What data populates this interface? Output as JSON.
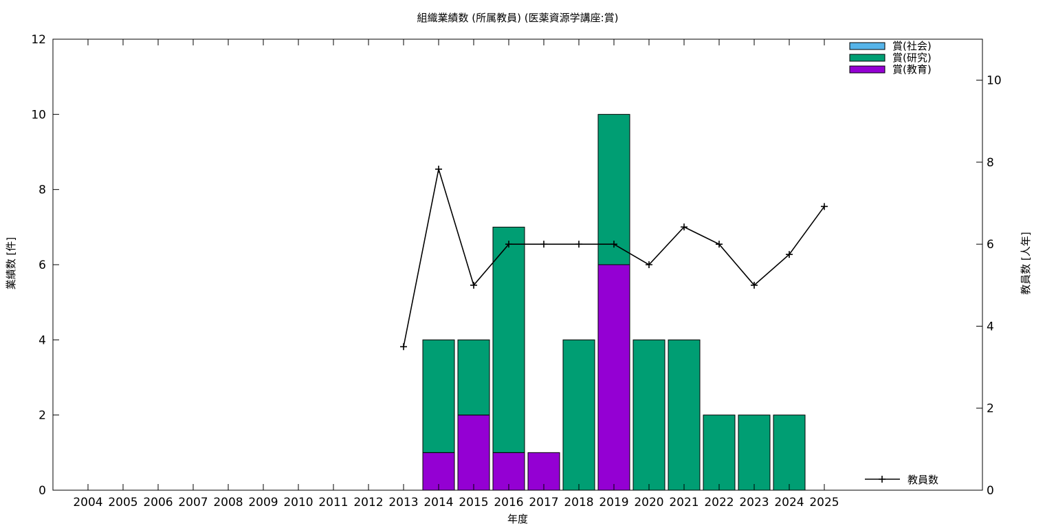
{
  "chart_data": {
    "type": "bar",
    "title": "組織業績数 (所属教員) (医薬資源学講座:賞)",
    "xlabel": "年度",
    "ylabel": "業績数 [件]",
    "y2label": "教員数 [人年]",
    "ylim": [
      0,
      12
    ],
    "y2lim": [
      0,
      11
    ],
    "yticks": [
      0,
      2,
      4,
      6,
      8,
      10,
      12
    ],
    "y2ticks": [
      0,
      2,
      4,
      6,
      8,
      10
    ],
    "stacked": true,
    "grid": false,
    "legend_position": "top-right",
    "categories": [
      "2004",
      "2005",
      "2006",
      "2007",
      "2008",
      "2009",
      "2010",
      "2011",
      "2012",
      "2013",
      "2014",
      "2015",
      "2016",
      "2017",
      "2018",
      "2019",
      "2020",
      "2021",
      "2022",
      "2023",
      "2024",
      "2025"
    ],
    "series": [
      {
        "name": "賞(社会)",
        "color": "#56b4e9",
        "values": [
          0,
          0,
          0,
          0,
          0,
          0,
          0,
          0,
          0,
          0,
          0,
          0,
          0,
          0,
          0,
          0,
          0,
          0,
          0,
          0,
          0,
          0
        ]
      },
      {
        "name": "賞(研究)",
        "color": "#009e73",
        "values": [
          0,
          0,
          0,
          0,
          0,
          0,
          0,
          0,
          0,
          0,
          3,
          2,
          6,
          0,
          4,
          4,
          4,
          4,
          2,
          2,
          2,
          0
        ]
      },
      {
        "name": "賞(教育)",
        "color": "#9400d3",
        "values": [
          0,
          0,
          0,
          0,
          0,
          0,
          0,
          0,
          0,
          0,
          1,
          2,
          1,
          1,
          0,
          6,
          0,
          0,
          0,
          0,
          0,
          0
        ]
      }
    ],
    "line_series": {
      "name": "教員数",
      "color": "#000000",
      "axis": "right",
      "legend_position": "bottom-right",
      "x": [
        "2013",
        "2014",
        "2015",
        "2016",
        "2017",
        "2018",
        "2019",
        "2020",
        "2021",
        "2022",
        "2023",
        "2024",
        "2025"
      ],
      "values": [
        3.5,
        7.83,
        5.0,
        6.0,
        6.0,
        6.0,
        6.0,
        5.5,
        6.42,
        6.0,
        5.0,
        5.75,
        6.92
      ]
    }
  }
}
